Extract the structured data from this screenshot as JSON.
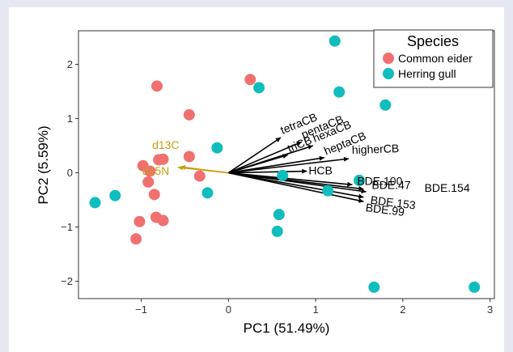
{
  "chart_data": {
    "type": "scatter",
    "xlabel": "PC1 (51.49%)",
    "ylabel": "PC2 (5.59%)",
    "xlim": [
      -1.72,
      3.05
    ],
    "ylim": [
      -2.32,
      2.62
    ],
    "x_ticks": [
      "−1",
      "0",
      "1",
      "2",
      "3"
    ],
    "x_tick_values": [
      -1,
      0,
      1,
      2,
      3
    ],
    "y_ticks": [
      "−2",
      "−1",
      "0",
      "1",
      "2"
    ],
    "y_tick_values": [
      -2,
      -1,
      0,
      1,
      2
    ],
    "grid": false,
    "legend": {
      "title": "Species",
      "placement": "top-right",
      "entries": [
        {
          "label": "Common eider",
          "color": "#f07070"
        },
        {
          "label": "Herring gull",
          "color": "#10bdbd"
        }
      ]
    },
    "series": [
      {
        "name": "Common eider",
        "color": "#f07070",
        "points": [
          [
            -0.82,
            1.6
          ],
          [
            0.25,
            1.72
          ],
          [
            -0.45,
            1.07
          ],
          [
            -0.75,
            0.25
          ],
          [
            -0.8,
            0.24
          ],
          [
            -0.45,
            0.3
          ],
          [
            -0.98,
            0.13
          ],
          [
            -0.9,
            0.03
          ],
          [
            -0.92,
            -0.17
          ],
          [
            -0.33,
            -0.06
          ],
          [
            -0.85,
            -0.4
          ],
          [
            -1.02,
            -0.9
          ],
          [
            -0.83,
            -0.82
          ],
          [
            -0.75,
            -0.88
          ],
          [
            -1.06,
            -1.22
          ]
        ]
      },
      {
        "name": "Herring gull",
        "color": "#10bdbd",
        "points": [
          [
            1.22,
            2.43
          ],
          [
            0.35,
            1.57
          ],
          [
            1.27,
            1.49
          ],
          [
            1.8,
            1.25
          ],
          [
            -0.13,
            0.46
          ],
          [
            0.62,
            -0.05
          ],
          [
            1.5,
            -0.14
          ],
          [
            1.14,
            -0.33
          ],
          [
            -0.24,
            -0.37
          ],
          [
            -1.3,
            -0.42
          ],
          [
            -1.53,
            -0.55
          ],
          [
            0.58,
            -0.77
          ],
          [
            0.56,
            -1.08
          ],
          [
            1.67,
            -2.11
          ],
          [
            2.82,
            -2.11
          ]
        ]
      }
    ],
    "loadings": [
      {
        "label": "tetraCB",
        "color": "#000000",
        "x": 0.6,
        "y": 0.65
      },
      {
        "label": "pentaCB",
        "color": "#000000",
        "x": 0.84,
        "y": 0.57
      },
      {
        "label": "hexaCB",
        "color": "#000000",
        "x": 0.97,
        "y": 0.5
      },
      {
        "label": "triCB",
        "color": "#000000",
        "x": 0.68,
        "y": 0.33
      },
      {
        "label": "heptaCB",
        "color": "#000000",
        "x": 1.1,
        "y": 0.28
      },
      {
        "label": "higherCB",
        "color": "#000000",
        "x": 1.38,
        "y": 0.26
      },
      {
        "label": "HCB",
        "color": "#000000",
        "x": 0.9,
        "y": 0.03
      },
      {
        "label": "BDE.100",
        "color": "#000000",
        "x": 1.42,
        "y": -0.22
      },
      {
        "label": "BDE.47",
        "color": "#000000",
        "x": 1.55,
        "y": -0.3
      },
      {
        "label": "BDE.154",
        "color": "#000000",
        "x": 1.58,
        "y": -0.35
      },
      {
        "label": "BDE.153",
        "color": "#000000",
        "x": 1.55,
        "y": -0.45
      },
      {
        "label": "BDE.99",
        "color": "#000000",
        "x": 1.55,
        "y": -0.53
      },
      {
        "label": "d13C",
        "color": "#c8a010",
        "x": -0.55,
        "y": 0.11
      },
      {
        "label": "d15N",
        "color": "#c8a010",
        "x": -0.58,
        "y": 0.1
      }
    ]
  }
}
